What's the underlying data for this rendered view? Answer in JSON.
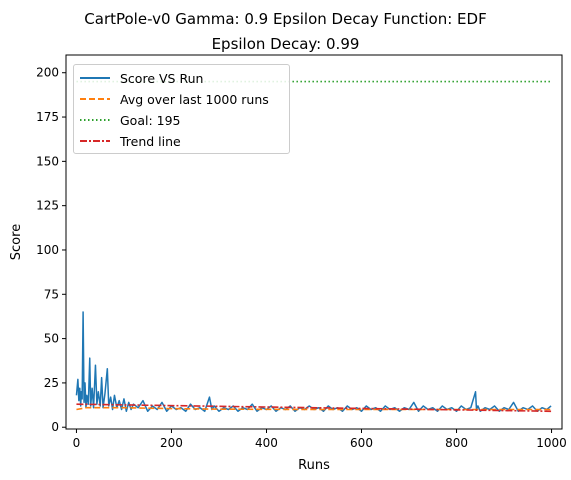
{
  "chart_data": {
    "type": "line",
    "title": "CartPole-v0 Gamma: 0.9 Epsilon Decay Function: EDF",
    "subtitle": "Epsilon Decay: 0.99",
    "xlabel": "Runs",
    "ylabel": "Score",
    "xlim": [
      -22,
      1022
    ],
    "ylim": [
      -1,
      210
    ],
    "xticks": [
      0,
      200,
      400,
      600,
      800,
      1000
    ],
    "yticks": [
      0,
      25,
      50,
      75,
      100,
      125,
      150,
      175,
      200
    ],
    "grid": false,
    "legend_position": "top-left",
    "series": [
      {
        "name": "Score VS Run",
        "color": "#1f77b4",
        "style": "solid",
        "x": [
          0,
          3,
          5,
          7,
          9,
          10,
          12,
          14,
          16,
          18,
          20,
          22,
          25,
          28,
          30,
          33,
          36,
          40,
          43,
          46,
          50,
          53,
          56,
          60,
          65,
          68,
          72,
          76,
          80,
          85,
          90,
          95,
          100,
          105,
          110,
          115,
          120,
          130,
          140,
          150,
          160,
          170,
          180,
          190,
          200,
          210,
          220,
          230,
          240,
          250,
          260,
          270,
          280,
          285,
          290,
          300,
          310,
          320,
          330,
          340,
          350,
          360,
          370,
          380,
          390,
          400,
          410,
          420,
          430,
          440,
          450,
          460,
          470,
          480,
          490,
          500,
          510,
          520,
          530,
          540,
          550,
          560,
          570,
          580,
          590,
          600,
          610,
          620,
          630,
          640,
          650,
          660,
          670,
          680,
          690,
          700,
          710,
          720,
          730,
          740,
          750,
          760,
          770,
          780,
          790,
          800,
          810,
          820,
          830,
          840,
          842,
          845,
          850,
          860,
          870,
          880,
          890,
          900,
          910,
          920,
          930,
          940,
          950,
          960,
          970,
          980,
          990,
          999
        ],
        "y": [
          18,
          27,
          15,
          22,
          12,
          20,
          16,
          65,
          14,
          25,
          11,
          18,
          13,
          39,
          12,
          22,
          11,
          35,
          13,
          20,
          12,
          28,
          11,
          19,
          33,
          12,
          17,
          10,
          18,
          11,
          15,
          10,
          16,
          9,
          14,
          10,
          13,
          11,
          15,
          9,
          12,
          10,
          14,
          9,
          12,
          10,
          11,
          9,
          13,
          10,
          11,
          9,
          17,
          10,
          12,
          9,
          11,
          10,
          12,
          9,
          11,
          10,
          13,
          9,
          11,
          10,
          12,
          9,
          11,
          10,
          12,
          9,
          11,
          10,
          12,
          10,
          11,
          9,
          12,
          10,
          11,
          9,
          12,
          10,
          11,
          9,
          12,
          10,
          11,
          9,
          12,
          10,
          11,
          9,
          11,
          10,
          14,
          9,
          12,
          10,
          11,
          9,
          12,
          10,
          11,
          9,
          12,
          10,
          11,
          20,
          10,
          12,
          9,
          11,
          10,
          12,
          9,
          11,
          10,
          14,
          9,
          11,
          10,
          12,
          9,
          11,
          10,
          12
        ]
      },
      {
        "name": "Avg over last 1000 runs",
        "color": "#ff7f0e",
        "style": "dashed",
        "x": [
          0,
          20,
          50,
          100,
          200,
          300,
          400,
          500,
          600,
          700,
          800,
          900,
          999
        ],
        "y": [
          10,
          11,
          11,
          11,
          10.5,
          10.2,
          10.1,
          10,
          10,
          10,
          10,
          10,
          10
        ]
      },
      {
        "name": "Goal: 195",
        "color": "#2ca02c",
        "style": "dotted",
        "x": [
          0,
          999
        ],
        "y": [
          195,
          195
        ]
      },
      {
        "name": "Trend line",
        "color": "#d62728",
        "style": "dashdot",
        "x": [
          0,
          999
        ],
        "y": [
          13,
          9
        ]
      }
    ]
  }
}
